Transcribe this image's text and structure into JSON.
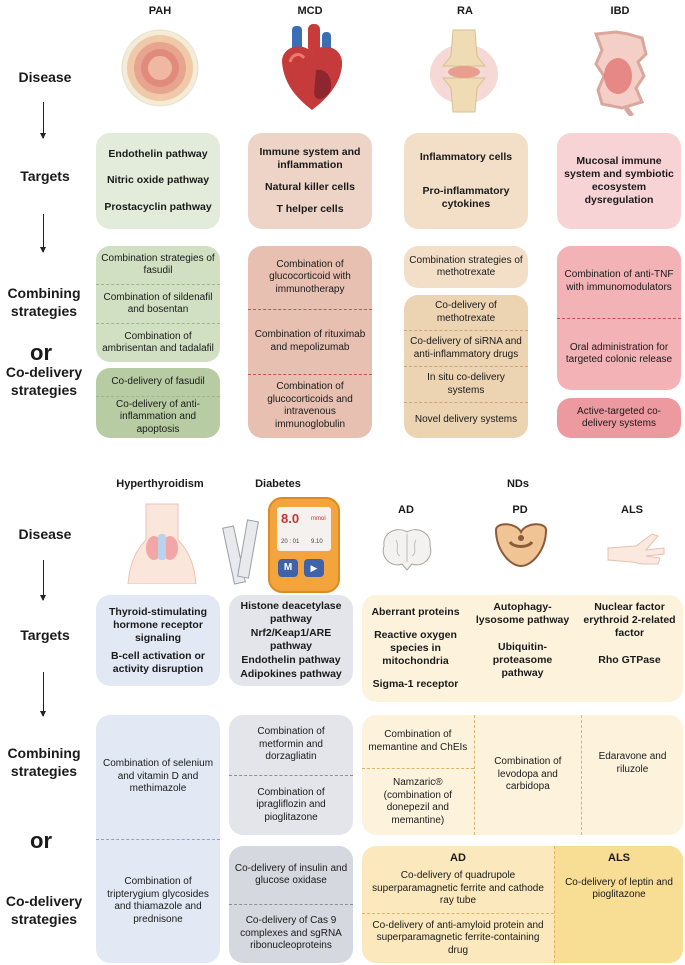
{
  "colors": {
    "green_light": "#e3ecdb",
    "green": "#d1e0c3",
    "green_dark": "#b7cca3",
    "red_light": "#eed3c7",
    "red": "#e7c0b1",
    "orange_light": "#f3dfc8",
    "orange": "#ecd3b1",
    "pink_light": "#f8d3d6",
    "pink": "#f2b2b6",
    "pink_dark": "#ec9aa0",
    "blue_light": "#e2e9f5",
    "gray_light": "#e3e5ea",
    "gray": "#d5d8de",
    "yellow_light": "#fdf3dd",
    "yellow": "#fbe9bd",
    "yellow_dark": "#f8dd95"
  },
  "top": {
    "columns": [
      "PAH",
      "MCD",
      "RA",
      "IBD"
    ],
    "row_labels": {
      "disease": "Disease",
      "targets": "Targets",
      "combining": "Combining strategies",
      "or": "or",
      "codelivery": "Co-delivery strategies"
    },
    "targets": [
      [
        "Endothelin pathway",
        "Nitric oxide pathway",
        "Prostacyclin pathway"
      ],
      [
        "Immune system and inflammation",
        "Natural killer cells",
        "T helper cells"
      ],
      [
        "Inflammatory cells",
        "Pro-inflammatory cytokines"
      ],
      [
        "Mucosal immune system and symbiotic ecosystem dysregulation"
      ]
    ],
    "pah_combining": [
      "Combination strategies of fasudil",
      "Combination of sildenafil and bosentan",
      "Combination of ambrisentan and tadalafil"
    ],
    "pah_codelivery": [
      "Co-delivery of fasudil",
      "Co-delivery of anti-inflammation and apoptosis"
    ],
    "mcd_combining": [
      "Combination of glucocorticoid with immunotherapy",
      "Combination of rituximab and mepolizumab",
      "Combination of glucocorticoids and intravenous immunoglobulin"
    ],
    "ra_combining": [
      "Combination strategies of methotrexate"
    ],
    "ra_codelivery": [
      "Co-delivery of methotrexate",
      "Co-delivery of siRNA and anti-inflammatory drugs",
      "In situ co-delivery systems",
      "Novel delivery systems"
    ],
    "ibd_combining": [
      "Combination of anti-TNF with immunomodulators",
      "Oral administration for targeted colonic release"
    ],
    "ibd_codelivery": [
      "Active-targeted co-delivery systems"
    ]
  },
  "bottom": {
    "columns": [
      "Hyperthyroidism",
      "Diabetes",
      "NDs"
    ],
    "nd_subcolumns": [
      "AD",
      "PD",
      "ALS"
    ],
    "row_labels": {
      "disease": "Disease",
      "targets": "Targets",
      "combining": "Combining strategies",
      "or": "or",
      "codelivery": "Co-delivery strategies"
    },
    "meter": {
      "value": "8.0",
      "unit": "mmol",
      "time_left": "20 : 01",
      "time_right": "9.10",
      "btn_m": "M",
      "btn_play": "▶"
    },
    "hyper_targets": [
      "Thyroid-stimulating hormone receptor signaling",
      "B-cell activation or activity disruption"
    ],
    "diabetes_targets": [
      "Histone deacetylase pathway",
      "Nrf2/Keap1/ARE pathway",
      "Endothelin pathway",
      "Adipokines pathway"
    ],
    "ad_targets": [
      "Aberrant proteins",
      "Reactive oxygen species in mitochondria",
      "Sigma-1 receptor"
    ],
    "pd_targets": [
      "Autophagy-lysosome pathway",
      "Ubiquitin-proteasome pathway"
    ],
    "als_targets": [
      "Nuclear factor erythroid 2-related factor",
      "Rho GTPase"
    ],
    "hyper_strategies": [
      "Combination of selenium and vitamin D and methimazole",
      "Combination of tripterygium glycosides and thiamazole and prednisone"
    ],
    "diabetes_combining": [
      "Combination of metformin and dorzagliatin",
      "Combination of ipragliflozin and pioglitazone"
    ],
    "diabetes_codelivery": [
      "Co-delivery of insulin and glucose oxidase",
      "Co-delivery of Cas 9 complexes and sgRNA ribonucleoproteins"
    ],
    "ad_combining": [
      "Combination of memantine and ChEIs",
      "Namzaric® (combination of donepezil and memantine)"
    ],
    "pd_combining": [
      "Combination of levodopa and carbidopa"
    ],
    "als_combining": [
      "Edaravone and riluzole"
    ],
    "codelivery_ad_title": "AD",
    "codelivery_als_title": "ALS",
    "ad_codelivery": [
      "Co-delivery of quadrupole superparamagnetic ferrite and cathode ray tube",
      "Co-delivery of anti-amyloid protein and superparamagnetic ferrite-containing drug"
    ],
    "als_codelivery": [
      "Co-delivery of leptin and pioglitazone"
    ]
  }
}
